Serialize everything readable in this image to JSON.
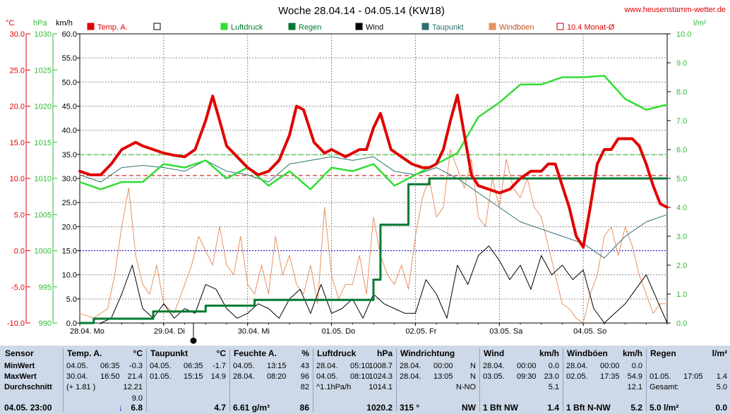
{
  "title": "Woche 28.04.14 - 04.05.14 (KW18)",
  "site": "www.heusenstamm-wetter.de",
  "axis_units": {
    "temp": "°C",
    "press": "hPa",
    "wind": "km/h",
    "rain": "l/m²"
  },
  "colors": {
    "temp": "#e00000",
    "press": "#33dd33",
    "rain": "#007a33",
    "wind": "#000000",
    "dew": "#2e7070",
    "gust": "#e89060",
    "monthly": "#c00000",
    "grid": "#888888",
    "freeze": "#0000cc",
    "panel": "#cdd9e8"
  },
  "legend": [
    {
      "label": "Temp. A.",
      "color": "#e00000",
      "style": "box"
    },
    {
      "label": "",
      "color": "#ffffff",
      "style": "box"
    },
    {
      "label": "Luftdruck",
      "color": "#33dd33",
      "style": "box"
    },
    {
      "label": "Regen",
      "color": "#007a33",
      "style": "box"
    },
    {
      "label": "Wind",
      "color": "#000000",
      "style": "box"
    },
    {
      "label": "Taupunkt",
      "color": "#2e7070",
      "style": "box"
    },
    {
      "label": "Windböen",
      "color": "#e89060",
      "style": "box"
    },
    {
      "label": "10.4 Monat-Ø",
      "color": "#c00000",
      "style": "outline"
    }
  ],
  "chart_data": {
    "type": "line",
    "title": "Woche 28.04.14 - 04.05.14 (KW18)",
    "x_unit": "hours since 28.04. 00:00",
    "x_range": [
      0,
      168
    ],
    "x_tick_labels": [
      "28.04. Mo",
      "29.04. Di",
      "30.04. Mi",
      "01.05. Do",
      "02.05. Fr",
      "03.05. Sa",
      "04.05. So"
    ],
    "y_axes": {
      "temp": {
        "label": "°C",
        "range": [
          -10,
          30
        ],
        "ticks": [
          "30.0",
          "25.0",
          "20.0",
          "15.0",
          "10.0",
          "5.0",
          "0.0",
          "-5.0",
          "-10.0"
        ]
      },
      "press": {
        "label": "hPa",
        "range": [
          990,
          1030
        ],
        "ticks": [
          "1030",
          "1025",
          "1020",
          "1015",
          "1010",
          "1005",
          "1000",
          "995",
          "990"
        ]
      },
      "wind": {
        "label": "km/h",
        "range": [
          0,
          60
        ],
        "ticks": [
          "60.0",
          "55.0",
          "50.0",
          "45.0",
          "40.0",
          "35.0",
          "30.0",
          "25.0",
          "20.0",
          "15.0",
          "10.0",
          "5.0",
          "0.0"
        ]
      },
      "rain": {
        "label": "l/m²",
        "range": [
          0,
          10
        ],
        "ticks": [
          "10.0",
          "9.0",
          "8.0",
          "7.0",
          "6.0",
          "5.0",
          "4.0",
          "3.0",
          "2.0",
          "1.0",
          "0.0"
        ]
      }
    },
    "reference_lines": [
      {
        "name": "10.4 Monat-Ø",
        "axis": "temp",
        "value": 10.4,
        "style": "dashed"
      },
      {
        "axis": "temp",
        "value": 0.0,
        "style": "dotted"
      },
      {
        "axis": "press",
        "value": 1013.25,
        "style": "dashed"
      }
    ],
    "series": [
      {
        "name": "Temp. A.",
        "axis": "temp",
        "x": [
          0,
          3,
          6,
          9,
          12,
          16,
          18,
          21,
          24,
          27,
          30,
          33,
          36,
          38,
          40,
          42,
          45,
          48,
          51,
          54,
          57,
          60,
          62,
          64,
          67,
          70,
          72,
          74,
          76,
          78,
          80,
          82,
          84,
          86,
          89,
          92,
          95,
          98,
          100,
          102,
          104,
          106,
          108,
          110,
          112,
          114,
          117,
          120,
          123,
          126,
          129,
          132,
          134,
          136,
          138,
          140,
          142,
          144,
          146,
          148,
          150,
          152,
          154,
          156,
          158,
          160,
          162,
          164,
          166,
          168
        ],
        "y": [
          11,
          10.5,
          10.5,
          12,
          14,
          15,
          14.5,
          14,
          13.5,
          13.2,
          13,
          14,
          18,
          21.4,
          18,
          14.5,
          13,
          11.5,
          10.5,
          11,
          12.5,
          16,
          20,
          19.5,
          15,
          13.5,
          14,
          13.5,
          13,
          13.5,
          14,
          14,
          17,
          19,
          14,
          13,
          12,
          11.5,
          11.5,
          12,
          14,
          18,
          21.5,
          16,
          10.5,
          9,
          8.5,
          8,
          8.5,
          10,
          11,
          11,
          12,
          12,
          9,
          6,
          2,
          0.5,
          6,
          12,
          14,
          14,
          15.5,
          15.5,
          15.5,
          14.5,
          12,
          9,
          6.5,
          6
        ]
      },
      {
        "name": "Luftdruck",
        "axis": "press",
        "x": [
          0,
          6,
          12,
          18,
          24,
          30,
          36,
          42,
          48,
          54,
          60,
          66,
          72,
          78,
          84,
          90,
          96,
          102,
          108,
          114,
          120,
          126,
          132,
          138,
          144,
          150,
          156,
          162,
          168
        ],
        "y": [
          1009.5,
          1008.5,
          1009.5,
          1009.5,
          1012,
          1011.5,
          1012.5,
          1010,
          1011.5,
          1009,
          1011,
          1008.5,
          1011.5,
          1011,
          1012,
          1009,
          1010.5,
          1012,
          1013.5,
          1018.5,
          1020.5,
          1023,
          1023,
          1024,
          1024,
          1024.2,
          1021,
          1019.5,
          1020.2
        ]
      },
      {
        "name": "Taupunkt",
        "axis": "temp",
        "x": [
          0,
          6,
          12,
          18,
          24,
          30,
          36,
          42,
          48,
          54,
          60,
          66,
          72,
          78,
          84,
          90,
          96,
          102,
          108,
          114,
          120,
          126,
          132,
          138,
          144,
          150,
          156,
          162,
          168
        ],
        "y": [
          10.5,
          9.5,
          11.5,
          11.8,
          11.5,
          11,
          12.5,
          11,
          10.5,
          9.5,
          12,
          12.5,
          13,
          12.5,
          13,
          11,
          10.5,
          11.5,
          10,
          8,
          6,
          4,
          3,
          2,
          1,
          -1,
          2,
          4,
          5
        ]
      },
      {
        "name": "Wind",
        "axis": "wind",
        "x": [
          0,
          6,
          9,
          12,
          15,
          18,
          21,
          24,
          27,
          30,
          33,
          36,
          39,
          42,
          45,
          48,
          51,
          54,
          57,
          60,
          63,
          66,
          69,
          72,
          75,
          78,
          81,
          84,
          87,
          90,
          93,
          96,
          99,
          102,
          105,
          108,
          111,
          114,
          117,
          120,
          123,
          126,
          129,
          132,
          135,
          138,
          141,
          144,
          147,
          150,
          153,
          156,
          159,
          162,
          165,
          168
        ],
        "y": [
          0,
          0,
          1,
          6,
          12,
          3,
          1,
          4,
          1,
          3,
          2,
          8,
          7,
          3,
          1,
          2,
          4,
          3,
          1,
          5,
          7,
          2,
          8,
          2,
          3,
          5,
          1,
          6,
          4,
          3,
          2,
          2,
          9,
          6,
          1,
          12,
          8,
          14,
          16,
          13,
          9,
          12,
          7,
          14,
          10,
          12,
          9,
          11,
          3,
          0,
          2,
          4,
          7,
          10,
          5,
          0
        ]
      },
      {
        "name": "Windböen",
        "axis": "wind",
        "x": [
          0,
          4,
          8,
          10,
          12,
          14,
          16,
          18,
          20,
          22,
          24,
          27,
          30,
          32,
          34,
          36,
          38,
          40,
          42,
          44,
          46,
          48,
          50,
          52,
          54,
          56,
          58,
          60,
          62,
          64,
          66,
          68,
          70,
          72,
          74,
          76,
          78,
          80,
          82,
          84,
          86,
          88,
          90,
          92,
          94,
          96,
          98,
          100,
          102,
          104,
          106,
          108,
          110,
          112,
          114,
          116,
          118,
          120,
          122,
          124,
          126,
          128,
          130,
          132,
          134,
          136,
          138,
          140,
          142,
          144,
          146,
          148,
          150,
          152,
          154,
          156,
          158,
          160,
          162,
          164,
          166,
          168
        ],
        "y": [
          2,
          1,
          3,
          10,
          20,
          28,
          14,
          8,
          6,
          12,
          4,
          2,
          8,
          12,
          18,
          15,
          12,
          20,
          12,
          10,
          18,
          8,
          6,
          12,
          6,
          18,
          10,
          14,
          8,
          6,
          12,
          4,
          24,
          10,
          5,
          8,
          8,
          14,
          6,
          22,
          14,
          10,
          8,
          12,
          7,
          18,
          26,
          30,
          22,
          24,
          36,
          32,
          28,
          34,
          22,
          20,
          30,
          24,
          34,
          28,
          26,
          30,
          24,
          22,
          16,
          10,
          4,
          3,
          1,
          0,
          6,
          10,
          18,
          20,
          14,
          20,
          16,
          10,
          6,
          2,
          4,
          4
        ]
      },
      {
        "name": "Regen",
        "axis": "rain",
        "type": "step",
        "x": [
          0,
          4,
          21,
          36,
          50,
          80,
          84,
          86,
          90,
          94,
          95,
          100,
          104,
          168
        ],
        "y": [
          0,
          0.15,
          0.4,
          0.6,
          0.8,
          0.8,
          1.5,
          3.4,
          3.4,
          4.8,
          4.8,
          5.0,
          5.0,
          5.0
        ]
      }
    ],
    "grid": true,
    "legend_position": "top"
  },
  "panel": [
    {
      "header": "Sensor",
      "unit": "",
      "rows": [
        {
          "a": "MinWert",
          "b": "",
          "c": ""
        },
        {
          "a": "MaxWert",
          "b": "",
          "c": ""
        },
        {
          "a": "Durchschnitt",
          "b": "",
          "c": ""
        },
        {
          "a": "",
          "b": "",
          "c": ""
        }
      ],
      "footer": {
        "a": "04.05. 23:00",
        "b": "",
        "c": ""
      }
    },
    {
      "header": "Temp. A.",
      "unit": "°C",
      "rows": [
        {
          "a": "04.05.",
          "b": "06:35",
          "c": "-0.3"
        },
        {
          "a": "30.04.",
          "b": "16:50",
          "c": "21.4"
        },
        {
          "a": "(+ 1.81 )",
          "b": "",
          "c": "12.21"
        },
        {
          "a": "",
          "b": "",
          "c": "9.0"
        }
      ],
      "footer": {
        "a": "",
        "b": "↓",
        "c": "6.8"
      }
    },
    {
      "header": "Taupunkt",
      "unit": "°C",
      "rows": [
        {
          "a": "04.05.",
          "b": "06:35",
          "c": "-1.7"
        },
        {
          "a": "01.05.",
          "b": "15:15",
          "c": "14.9"
        },
        {
          "a": "",
          "b": "",
          "c": ""
        },
        {
          "a": "",
          "b": "",
          "c": ""
        }
      ],
      "footer": {
        "a": "",
        "b": "",
        "c": "4.7"
      }
    },
    {
      "header": "Feuchte A.",
      "unit": "%",
      "rows": [
        {
          "a": "04.05.",
          "b": "13:15",
          "c": "43"
        },
        {
          "a": "28.04.",
          "b": "08:20",
          "c": "96"
        },
        {
          "a": "",
          "b": "",
          "c": "82"
        },
        {
          "a": "",
          "b": "",
          "c": ""
        }
      ],
      "footer": {
        "a": "6.61 g/m³",
        "b": "",
        "c": "86"
      }
    },
    {
      "header": "Luftdruck",
      "unit": "hPa",
      "rows": [
        {
          "a": "28.04.",
          "b": "05:10",
          "c": "1008.7"
        },
        {
          "a": "04.05.",
          "b": "08:10",
          "c": "1024.3"
        },
        {
          "a": "^1.1hPa/h",
          "b": "",
          "c": "1014.1"
        },
        {
          "a": "",
          "b": "",
          "c": ""
        }
      ],
      "footer": {
        "a": "",
        "b": "",
        "c": "1020.2"
      }
    },
    {
      "header": "Windrichtung",
      "unit": "",
      "rows": [
        {
          "a": "28.04.",
          "b": "00:00",
          "c": "N"
        },
        {
          "a": "28.04.",
          "b": "13:05",
          "c": "N"
        },
        {
          "a": "",
          "b": "",
          "c": "N-NO"
        },
        {
          "a": "",
          "b": "",
          "c": ""
        }
      ],
      "footer": {
        "a": "315 °",
        "b": "",
        "c": "NW"
      }
    },
    {
      "header": "Wind",
      "unit": "km/h",
      "rows": [
        {
          "a": "28.04.",
          "b": "00:00",
          "c": "0.0"
        },
        {
          "a": "03.05.",
          "b": "09:30",
          "c": "23.0"
        },
        {
          "a": "",
          "b": "",
          "c": "5.1"
        },
        {
          "a": "",
          "b": "",
          "c": ""
        }
      ],
      "footer": {
        "a": "1 Bft NW",
        "b": "",
        "c": "1.4"
      }
    },
    {
      "header": "Windböen",
      "unit": "km/h",
      "rows": [
        {
          "a": "28.04.",
          "b": "00:00",
          "c": "0.0"
        },
        {
          "a": "02.05.",
          "b": "17:35",
          "c": "54.9"
        },
        {
          "a": "",
          "b": "",
          "c": "12.1"
        },
        {
          "a": "",
          "b": "",
          "c": ""
        }
      ],
      "footer": {
        "a": "1 Bft N-NW",
        "b": "",
        "c": "5.2"
      }
    },
    {
      "header": "Regen",
      "unit": "l/m²",
      "rows": [
        {
          "a": "",
          "b": "",
          "c": ""
        },
        {
          "a": "01.05.",
          "b": "17:05",
          "c": "1.4"
        },
        {
          "a": "Gesamt:",
          "b": "",
          "c": "5.0"
        },
        {
          "a": "",
          "b": "",
          "c": ""
        }
      ],
      "footer": {
        "a": "5.0 l/m²",
        "b": "",
        "c": "0.0"
      }
    }
  ]
}
